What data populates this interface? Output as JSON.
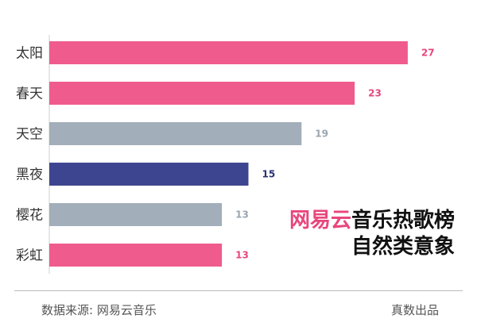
{
  "chart_data": {
    "type": "bar",
    "orientation": "horizontal",
    "categories": [
      "太阳",
      "春天",
      "天空",
      "黑夜",
      "樱花",
      "彩虹"
    ],
    "values": [
      27,
      23,
      19,
      15,
      13,
      13
    ],
    "colors": [
      "#ef5b8c",
      "#ef5b8c",
      "#a2aeb9",
      "#3e4590",
      "#a2aeb9",
      "#ef5b8c"
    ],
    "label_colors": [
      "#e8467c",
      "#e8467c",
      "#9aa6b0",
      "#2b3175",
      "#9aa6b0",
      "#e8467c"
    ],
    "xlim": [
      0,
      30
    ],
    "grid": false
  },
  "title": {
    "accent": "网易云",
    "line1_rest": "音乐热歌榜",
    "line2": "自然类意象"
  },
  "footer": {
    "source": "数据来源: 网易云音乐",
    "brand": "真数出品"
  }
}
